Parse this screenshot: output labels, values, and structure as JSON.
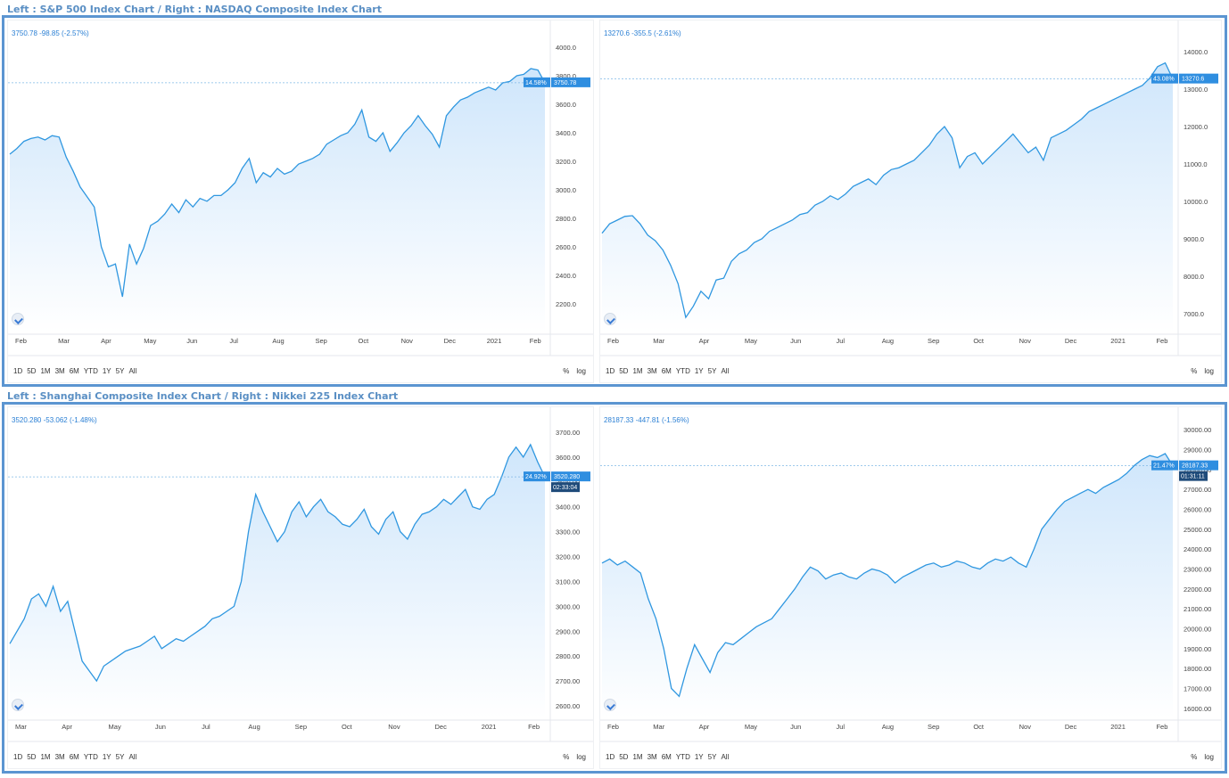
{
  "sections": [
    {
      "title": "Left : S&P 500 Index Chart / Right : NASDAQ Composite Index Chart"
    },
    {
      "title": "Left : Shanghai Composite Index Chart / Right : Nikkei 225 Index Chart"
    }
  ],
  "toolbar": {
    "ranges": [
      "1D",
      "5D",
      "1M",
      "3M",
      "6M",
      "YTD",
      "1Y",
      "5Y",
      "All"
    ],
    "percent": "%",
    "log": "log"
  },
  "colors": {
    "line": "#2f97e0",
    "fill_top": "#cfe6fb",
    "accent_tag": "#2f8ee0",
    "dark_tag": "#1f4b7a"
  },
  "icons": {
    "logo": "tradingview-logo-icon"
  },
  "chart_data": [
    {
      "type": "area",
      "title": "",
      "ohlc": "3750.78 -98.85 (-2.57%)",
      "x_ticks": [
        "Feb",
        "Mar",
        "Apr",
        "May",
        "Jun",
        "Jul",
        "Aug",
        "Sep",
        "Oct",
        "Nov",
        "Dec",
        "2021",
        "Feb"
      ],
      "y_ticks": [
        "4000.0",
        "3800.0",
        "3600.0",
        "3400.0",
        "3200.0",
        "3000.0",
        "2800.0",
        "2600.0",
        "2400.0",
        "2200.0"
      ],
      "ylim": [
        2000,
        4100
      ],
      "pct_tag": "14.58%",
      "last_tag": "3750.78",
      "last_value": 3750.78,
      "series": [
        {
          "values": [
            3250,
            3290,
            3340,
            3360,
            3370,
            3350,
            3380,
            3370,
            3230,
            3130,
            3020,
            2950,
            2880,
            2600,
            2460,
            2480,
            2250,
            2620,
            2480,
            2590,
            2750,
            2780,
            2830,
            2900,
            2840,
            2930,
            2880,
            2940,
            2920,
            2960,
            2960,
            3000,
            3050,
            3150,
            3220,
            3050,
            3120,
            3090,
            3150,
            3110,
            3130,
            3180,
            3200,
            3220,
            3250,
            3320,
            3350,
            3380,
            3400,
            3460,
            3560,
            3370,
            3340,
            3400,
            3270,
            3330,
            3400,
            3450,
            3520,
            3450,
            3390,
            3300,
            3520,
            3580,
            3630,
            3650,
            3680,
            3700,
            3720,
            3700,
            3750,
            3760,
            3800,
            3810,
            3850,
            3840,
            3750.78
          ]
        }
      ],
      "grid": false,
      "legend": "none"
    },
    {
      "type": "area",
      "title": "",
      "ohlc": "13270.6 -355.5 (-2.61%)",
      "x_ticks": [
        "Feb",
        "Mar",
        "Apr",
        "May",
        "Jun",
        "Jul",
        "Aug",
        "Sep",
        "Oct",
        "Nov",
        "Dec",
        "2021",
        "Feb"
      ],
      "y_ticks": [
        "14000.0",
        "13000.0",
        "12000.0",
        "11000.0",
        "10000.0",
        "9000.0",
        "8000.0",
        "7000.0"
      ],
      "ylim": [
        6500,
        14500
      ],
      "pct_tag": "43.08%",
      "last_tag": "13270.6",
      "last_value": 13270.6,
      "series": [
        {
          "values": [
            9150,
            9400,
            9500,
            9600,
            9620,
            9400,
            9100,
            8950,
            8700,
            8300,
            7800,
            6900,
            7200,
            7600,
            7400,
            7900,
            7950,
            8400,
            8600,
            8700,
            8900,
            9000,
            9200,
            9300,
            9400,
            9500,
            9650,
            9700,
            9900,
            10000,
            10150,
            10050,
            10200,
            10400,
            10500,
            10600,
            10450,
            10700,
            10850,
            10900,
            11000,
            11100,
            11300,
            11500,
            11800,
            12000,
            11700,
            10900,
            11200,
            11300,
            11000,
            11200,
            11400,
            11600,
            11800,
            11550,
            11300,
            11450,
            11100,
            11700,
            11800,
            11900,
            12050,
            12200,
            12400,
            12500,
            12600,
            12700,
            12800,
            12900,
            13000,
            13100,
            13300,
            13600,
            13700,
            13270.6
          ]
        }
      ],
      "grid": false,
      "legend": "none"
    },
    {
      "type": "area",
      "title": "",
      "ohlc": "3520.280 -53.062 (-1.48%)",
      "x_ticks": [
        "Mar",
        "Apr",
        "May",
        "Jun",
        "Jul",
        "Aug",
        "Sep",
        "Oct",
        "Nov",
        "Dec",
        "2021",
        "Feb"
      ],
      "y_ticks": [
        "3700.00",
        "3600.00",
        "3500.00",
        "3400.00",
        "3300.00",
        "3200.00",
        "3100.00",
        "3000.00",
        "2900.00",
        "2800.00",
        "2700.00",
        "2600.00"
      ],
      "ylim": [
        2550,
        3750
      ],
      "pct_tag": "24.92%",
      "last_tag": "3520.280",
      "time_tag": "02:33:04",
      "last_value": 3520.28,
      "series": [
        {
          "values": [
            2850,
            2900,
            2950,
            3030,
            3050,
            3000,
            3080,
            2980,
            3020,
            2900,
            2780,
            2740,
            2700,
            2760,
            2780,
            2800,
            2820,
            2830,
            2840,
            2860,
            2880,
            2830,
            2850,
            2870,
            2860,
            2880,
            2900,
            2920,
            2950,
            2960,
            2980,
            3000,
            3100,
            3300,
            3450,
            3380,
            3320,
            3260,
            3300,
            3380,
            3420,
            3360,
            3400,
            3430,
            3380,
            3360,
            3330,
            3320,
            3350,
            3390,
            3320,
            3290,
            3350,
            3380,
            3300,
            3270,
            3330,
            3370,
            3380,
            3400,
            3430,
            3410,
            3440,
            3470,
            3400,
            3390,
            3430,
            3450,
            3520,
            3600,
            3640,
            3600,
            3650,
            3580,
            3520.28
          ]
        }
      ],
      "grid": false,
      "legend": "none"
    },
    {
      "type": "area",
      "title": "",
      "ohlc": "28187.33 -447.81 (-1.56%)",
      "x_ticks": [
        "Feb",
        "Mar",
        "Apr",
        "May",
        "Jun",
        "Jul",
        "Aug",
        "Sep",
        "Oct",
        "Nov",
        "Dec",
        "2021",
        "Feb"
      ],
      "y_ticks": [
        "30000.00",
        "29000.00",
        "28000.00",
        "27000.00",
        "26000.00",
        "25000.00",
        "24000.00",
        "23000.00",
        "22000.00",
        "21000.00",
        "20000.00",
        "19000.00",
        "18000.00",
        "17000.00",
        "16000.00"
      ],
      "ylim": [
        15500,
        30500
      ],
      "pct_tag": "21.47%",
      "last_tag": "28187.33",
      "time_tag": "01:31:11",
      "last_value": 28187.33,
      "series": [
        {
          "values": [
            23300,
            23500,
            23200,
            23400,
            23100,
            22800,
            21500,
            20500,
            19000,
            17000,
            16600,
            18000,
            19200,
            18500,
            17800,
            18800,
            19300,
            19200,
            19500,
            19800,
            20100,
            20300,
            20500,
            21000,
            21500,
            22000,
            22600,
            23100,
            22900,
            22500,
            22700,
            22800,
            22600,
            22500,
            22800,
            23000,
            22900,
            22700,
            22300,
            22600,
            22800,
            23000,
            23200,
            23300,
            23100,
            23200,
            23400,
            23300,
            23100,
            23000,
            23300,
            23500,
            23400,
            23600,
            23300,
            23100,
            24000,
            25000,
            25500,
            26000,
            26400,
            26600,
            26800,
            27000,
            26800,
            27100,
            27300,
            27500,
            27800,
            28200,
            28500,
            28700,
            28600,
            28800,
            28187.33
          ]
        }
      ],
      "grid": false,
      "legend": "none"
    }
  ]
}
